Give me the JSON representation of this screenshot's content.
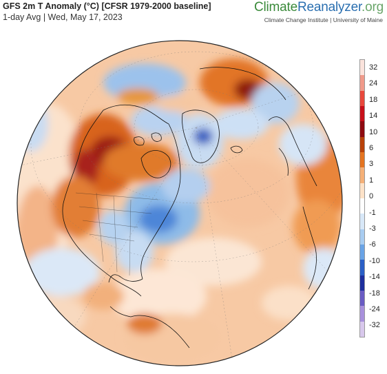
{
  "header": {
    "title": "GFS 2m T Anomaly (°C) [CFSR 1979-2000 baseline]",
    "subtitle": "1-day Avg | Wed, May 17, 2023"
  },
  "brand": {
    "part1": "Climate",
    "part2": "Reanalyzer",
    "part3": ".org",
    "institute": "Climate Change Institute | University of Maine"
  },
  "legend": {
    "ticks": [
      "32",
      "24",
      "18",
      "14",
      "10",
      "6",
      "3",
      "1",
      "0",
      "-1",
      "-3",
      "-6",
      "-10",
      "-14",
      "-18",
      "-24",
      "-32"
    ],
    "colors": [
      "#fbe3dc",
      "#f09a8a",
      "#e8483c",
      "#c8101a",
      "#8e0a10",
      "#b8420a",
      "#e47420",
      "#f5b078",
      "#fde2c8",
      "#ffffff",
      "#d8e8f8",
      "#a8ccf0",
      "#6aa4e6",
      "#2b5fc6",
      "#1e2f9e",
      "#6a5cc4",
      "#a890dc",
      "#d8c8ec"
    ]
  }
}
